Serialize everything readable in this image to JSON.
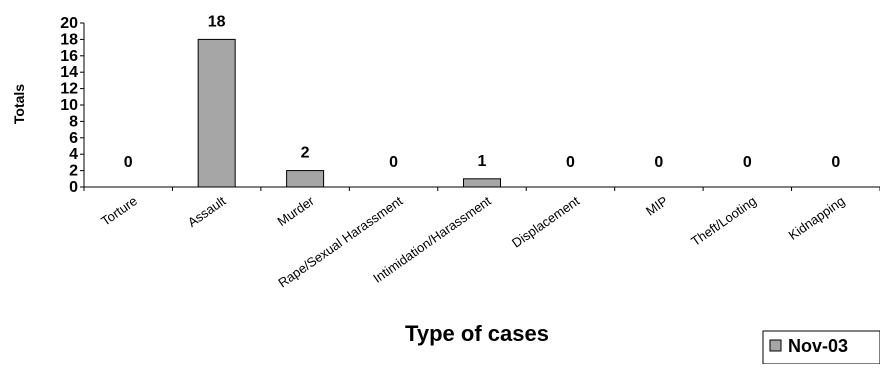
{
  "chart_data": {
    "type": "bar",
    "title": "",
    "xlabel": "Type of cases",
    "ylabel": "Totals",
    "categories": [
      "Torture",
      "Assault",
      "Murder",
      "Rape/Sexual Harassment",
      "Intimidation/Harassment",
      "Displacement",
      "MIP",
      "Theft/Looting",
      "Kidnapping"
    ],
    "series": [
      {
        "name": "Nov-03",
        "values": [
          0,
          18,
          2,
          0,
          1,
          0,
          0,
          0,
          0
        ],
        "color": "#a6a6a6"
      }
    ],
    "ylim": [
      0,
      20
    ],
    "yticks": [
      "0",
      "2",
      "4",
      "6",
      "8",
      "10",
      "12",
      "14",
      "16",
      "18",
      "20"
    ],
    "data_labels": [
      "0",
      "18",
      "2",
      "0",
      "1",
      "0",
      "0",
      "0",
      "0"
    ],
    "grid": false,
    "legend_position": "bottom-right"
  }
}
